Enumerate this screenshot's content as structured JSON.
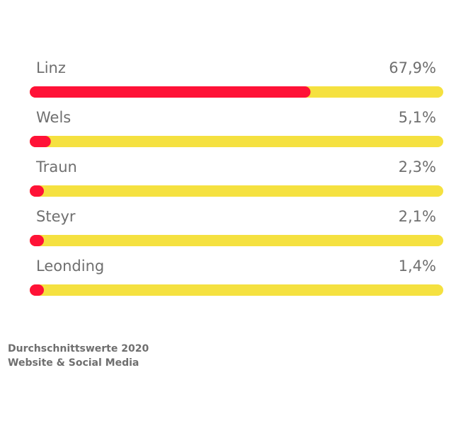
{
  "chart_data": {
    "type": "bar",
    "orientation": "horizontal",
    "categories": [
      "Linz",
      "Wels",
      "Traun",
      "Steyr",
      "Leonding"
    ],
    "values": [
      67.9,
      5.1,
      2.3,
      2.1,
      1.4
    ],
    "value_labels": [
      "67,9%",
      "5,1%",
      "2,3%",
      "2,1%",
      "1,4%"
    ],
    "xlim": [
      0,
      100
    ],
    "unit": "%",
    "grid": false,
    "colors": {
      "bar": "#ff1237",
      "track": "#f5e140",
      "text": "#6f6f6f"
    }
  },
  "footnote": {
    "line1": "Durchschnittswerte 2020",
    "line2": "Website & Social Media"
  }
}
